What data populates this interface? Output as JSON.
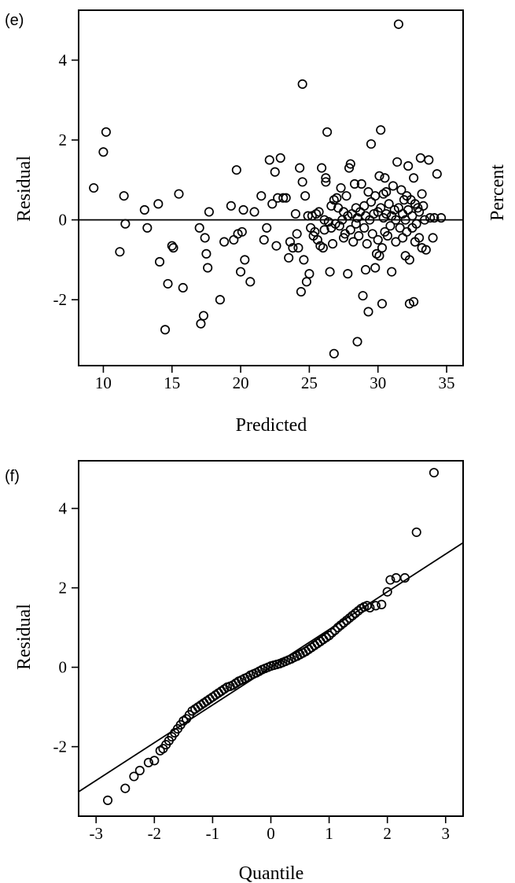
{
  "chart_data": [
    {
      "panel": "(e)",
      "type": "scatter",
      "xlabel": "Predicted",
      "ylabel": "Residual",
      "right_label": "Percent",
      "xlim": [
        8.2,
        36.2
      ],
      "ylim": [
        -3.65,
        5.25
      ],
      "xticks": [
        10,
        15,
        20,
        25,
        30,
        35
      ],
      "yticks": [
        -2,
        0,
        2,
        4
      ],
      "reference_line": {
        "type": "horizontal",
        "y": 0
      },
      "points": [
        [
          9.3,
          0.8
        ],
        [
          10.0,
          1.7
        ],
        [
          10.2,
          2.2
        ],
        [
          11.2,
          -0.8
        ],
        [
          11.5,
          0.6
        ],
        [
          11.6,
          -0.1
        ],
        [
          13.0,
          0.25
        ],
        [
          13.2,
          -0.2
        ],
        [
          14.0,
          0.4
        ],
        [
          14.1,
          -1.05
        ],
        [
          14.5,
          -2.75
        ],
        [
          14.7,
          -1.6
        ],
        [
          15.0,
          -0.65
        ],
        [
          15.1,
          -0.7
        ],
        [
          15.5,
          0.65
        ],
        [
          15.8,
          -1.7
        ],
        [
          17.0,
          -0.2
        ],
        [
          17.1,
          -2.6
        ],
        [
          17.3,
          -2.4
        ],
        [
          17.4,
          -0.45
        ],
        [
          17.5,
          -0.85
        ],
        [
          17.6,
          -1.2
        ],
        [
          17.7,
          0.2
        ],
        [
          18.5,
          -2.0
        ],
        [
          18.8,
          -0.55
        ],
        [
          19.3,
          0.35
        ],
        [
          19.5,
          -0.5
        ],
        [
          19.7,
          1.25
        ],
        [
          19.8,
          -0.35
        ],
        [
          20.0,
          -1.3
        ],
        [
          20.1,
          -0.3
        ],
        [
          20.2,
          0.25
        ],
        [
          20.3,
          -1.0
        ],
        [
          20.7,
          -1.55
        ],
        [
          21.0,
          0.2
        ],
        [
          21.5,
          0.6
        ],
        [
          21.7,
          -0.5
        ],
        [
          21.9,
          -0.2
        ],
        [
          22.1,
          1.5
        ],
        [
          22.3,
          0.4
        ],
        [
          22.5,
          1.2
        ],
        [
          22.6,
          -0.65
        ],
        [
          22.7,
          0.55
        ],
        [
          22.9,
          1.55
        ],
        [
          23.1,
          0.55
        ],
        [
          23.3,
          0.55
        ],
        [
          23.5,
          -0.95
        ],
        [
          23.6,
          -0.55
        ],
        [
          23.8,
          -0.7
        ],
        [
          24.0,
          0.15
        ],
        [
          24.1,
          -0.35
        ],
        [
          24.2,
          -0.7
        ],
        [
          24.3,
          1.3
        ],
        [
          24.4,
          -1.8
        ],
        [
          24.5,
          0.95
        ],
        [
          24.5,
          3.4
        ],
        [
          24.6,
          -1.0
        ],
        [
          24.7,
          0.6
        ],
        [
          24.8,
          -1.55
        ],
        [
          24.9,
          0.1
        ],
        [
          25.0,
          -1.35
        ],
        [
          25.1,
          -0.2
        ],
        [
          25.2,
          0.1
        ],
        [
          25.3,
          -0.4
        ],
        [
          25.4,
          -0.3
        ],
        [
          25.5,
          0.15
        ],
        [
          25.6,
          -0.5
        ],
        [
          25.7,
          0.2
        ],
        [
          25.8,
          -0.65
        ],
        [
          25.9,
          1.3
        ],
        [
          26.0,
          -0.7
        ],
        [
          26.1,
          -0.25
        ],
        [
          26.1,
          0.0
        ],
        [
          26.2,
          1.05
        ],
        [
          26.2,
          0.95
        ],
        [
          26.3,
          2.2
        ],
        [
          26.4,
          -0.05
        ],
        [
          26.5,
          -1.3
        ],
        [
          26.6,
          0.35
        ],
        [
          26.6,
          -0.2
        ],
        [
          26.7,
          -0.6
        ],
        [
          26.8,
          0.5
        ],
        [
          26.9,
          -0.1
        ],
        [
          27.0,
          0.55
        ],
        [
          26.8,
          -3.35
        ],
        [
          27.1,
          0.3
        ],
        [
          27.2,
          -0.15
        ],
        [
          27.3,
          0.8
        ],
        [
          27.4,
          0.0
        ],
        [
          27.5,
          -0.45
        ],
        [
          27.5,
          0.2
        ],
        [
          27.6,
          -0.35
        ],
        [
          27.7,
          0.6
        ],
        [
          27.8,
          -1.35
        ],
        [
          27.8,
          0.1
        ],
        [
          27.9,
          1.3
        ],
        [
          28.0,
          -0.25
        ],
        [
          28.0,
          1.4
        ],
        [
          28.1,
          0.15
        ],
        [
          28.2,
          -0.55
        ],
        [
          28.3,
          0.9
        ],
        [
          28.4,
          -0.1
        ],
        [
          28.4,
          0.3
        ],
        [
          28.5,
          0.05
        ],
        [
          28.5,
          -3.05
        ],
        [
          28.6,
          -0.4
        ],
        [
          28.7,
          0.2
        ],
        [
          28.8,
          0.9
        ],
        [
          28.9,
          -1.9
        ],
        [
          29.0,
          0.35
        ],
        [
          29.0,
          -0.2
        ],
        [
          29.1,
          -1.25
        ],
        [
          29.1,
          0.1
        ],
        [
          29.2,
          -0.6
        ],
        [
          29.3,
          0.7
        ],
        [
          29.3,
          -2.3
        ],
        [
          29.4,
          0.0
        ],
        [
          29.5,
          1.9
        ],
        [
          29.5,
          0.45
        ],
        [
          29.6,
          -0.35
        ],
        [
          29.7,
          0.15
        ],
        [
          29.8,
          -1.2
        ],
        [
          29.8,
          0.6
        ],
        [
          29.9,
          -0.85
        ],
        [
          30.0,
          0.2
        ],
        [
          30.0,
          -0.5
        ],
        [
          30.1,
          -0.9
        ],
        [
          30.1,
          1.1
        ],
        [
          30.2,
          0.3
        ],
        [
          30.2,
          2.25
        ],
        [
          30.3,
          -0.7
        ],
        [
          30.3,
          -2.1
        ],
        [
          30.4,
          0.05
        ],
        [
          30.4,
          0.65
        ],
        [
          30.5,
          1.05
        ],
        [
          30.5,
          -0.3
        ],
        [
          30.6,
          0.7
        ],
        [
          30.6,
          0.15
        ],
        [
          30.7,
          -0.4
        ],
        [
          30.8,
          0.4
        ],
        [
          30.9,
          -0.15
        ],
        [
          31.0,
          0.1
        ],
        [
          31.0,
          -1.3
        ],
        [
          31.1,
          0.85
        ],
        [
          31.2,
          0.25
        ],
        [
          31.3,
          -0.55
        ],
        [
          31.3,
          0.0
        ],
        [
          31.4,
          1.45
        ],
        [
          31.5,
          4.9
        ],
        [
          31.5,
          0.3
        ],
        [
          31.6,
          -0.2
        ],
        [
          31.7,
          0.75
        ],
        [
          31.8,
          -0.45
        ],
        [
          31.8,
          0.15
        ],
        [
          31.9,
          0.5
        ],
        [
          32.0,
          -0.9
        ],
        [
          32.0,
          0.0
        ],
        [
          32.1,
          0.6
        ],
        [
          32.1,
          -0.3
        ],
        [
          32.2,
          1.35
        ],
        [
          32.2,
          0.25
        ],
        [
          32.3,
          -2.1
        ],
        [
          32.3,
          -1.0
        ],
        [
          32.4,
          0.5
        ],
        [
          32.5,
          -0.2
        ],
        [
          32.5,
          0.1
        ],
        [
          32.6,
          -2.05
        ],
        [
          32.6,
          1.05
        ],
        [
          32.7,
          -0.55
        ],
        [
          32.7,
          0.4
        ],
        [
          32.8,
          -0.1
        ],
        [
          32.9,
          0.3
        ],
        [
          33.0,
          -0.45
        ],
        [
          33.0,
          0.2
        ],
        [
          33.1,
          1.55
        ],
        [
          33.2,
          0.65
        ],
        [
          33.2,
          -0.7
        ],
        [
          33.3,
          0.35
        ],
        [
          33.4,
          0.0
        ],
        [
          33.5,
          -0.75
        ],
        [
          33.7,
          1.5
        ],
        [
          33.8,
          0.05
        ],
        [
          34.0,
          -0.45
        ],
        [
          34.1,
          0.05
        ],
        [
          34.3,
          1.15
        ],
        [
          34.6,
          0.05
        ]
      ]
    },
    {
      "panel": "(f)",
      "type": "scatter",
      "xlabel": "Quantile",
      "ylabel": "Residual",
      "xlim": [
        -3.3,
        3.3
      ],
      "ylim": [
        -3.75,
        5.2
      ],
      "xticks": [
        -3,
        -2,
        -1,
        0,
        1,
        2,
        3
      ],
      "yticks": [
        -2,
        0,
        2,
        4
      ],
      "reference_line": {
        "type": "linear",
        "intercept": 0.0,
        "slope": 0.95
      },
      "points": [
        [
          -2.8,
          -3.35
        ],
        [
          -2.5,
          -3.05
        ],
        [
          -2.35,
          -2.75
        ],
        [
          -2.25,
          -2.6
        ],
        [
          -2.1,
          -2.4
        ],
        [
          -2.0,
          -2.35
        ],
        [
          -1.9,
          -2.1
        ],
        [
          -1.85,
          -2.05
        ],
        [
          -1.8,
          -1.95
        ],
        [
          -1.75,
          -1.85
        ],
        [
          -1.7,
          -1.75
        ],
        [
          -1.65,
          -1.65
        ],
        [
          -1.6,
          -1.55
        ],
        [
          -1.55,
          -1.45
        ],
        [
          -1.5,
          -1.35
        ],
        [
          -1.45,
          -1.3
        ],
        [
          -1.4,
          -1.2
        ],
        [
          -1.35,
          -1.1
        ],
        [
          -1.3,
          -1.05
        ],
        [
          -1.25,
          -1.0
        ],
        [
          -1.2,
          -0.95
        ],
        [
          -1.15,
          -0.9
        ],
        [
          -1.1,
          -0.85
        ],
        [
          -1.05,
          -0.8
        ],
        [
          -1.0,
          -0.75
        ],
        [
          -0.95,
          -0.7
        ],
        [
          -0.9,
          -0.65
        ],
        [
          -0.85,
          -0.6
        ],
        [
          -0.8,
          -0.55
        ],
        [
          -0.75,
          -0.5
        ],
        [
          -0.7,
          -0.48
        ],
        [
          -0.65,
          -0.45
        ],
        [
          -0.6,
          -0.4
        ],
        [
          -0.55,
          -0.35
        ],
        [
          -0.5,
          -0.32
        ],
        [
          -0.45,
          -0.28
        ],
        [
          -0.4,
          -0.25
        ],
        [
          -0.35,
          -0.2
        ],
        [
          -0.3,
          -0.17
        ],
        [
          -0.25,
          -0.14
        ],
        [
          -0.2,
          -0.1
        ],
        [
          -0.15,
          -0.06
        ],
        [
          -0.1,
          -0.03
        ],
        [
          -0.05,
          0.0
        ],
        [
          0.0,
          0.03
        ],
        [
          0.05,
          0.05
        ],
        [
          0.1,
          0.07
        ],
        [
          0.15,
          0.09
        ],
        [
          0.2,
          0.12
        ],
        [
          0.25,
          0.15
        ],
        [
          0.3,
          0.18
        ],
        [
          0.35,
          0.21
        ],
        [
          0.4,
          0.25
        ],
        [
          0.45,
          0.28
        ],
        [
          0.5,
          0.32
        ],
        [
          0.55,
          0.36
        ],
        [
          0.6,
          0.4
        ],
        [
          0.65,
          0.45
        ],
        [
          0.7,
          0.5
        ],
        [
          0.75,
          0.55
        ],
        [
          0.8,
          0.6
        ],
        [
          0.85,
          0.65
        ],
        [
          0.9,
          0.7
        ],
        [
          0.95,
          0.75
        ],
        [
          1.0,
          0.8
        ],
        [
          1.05,
          0.87
        ],
        [
          1.1,
          0.93
        ],
        [
          1.15,
          1.0
        ],
        [
          1.2,
          1.06
        ],
        [
          1.25,
          1.12
        ],
        [
          1.3,
          1.18
        ],
        [
          1.35,
          1.24
        ],
        [
          1.4,
          1.3
        ],
        [
          1.45,
          1.36
        ],
        [
          1.5,
          1.42
        ],
        [
          1.55,
          1.48
        ],
        [
          1.6,
          1.52
        ],
        [
          1.65,
          1.55
        ],
        [
          1.7,
          1.5
        ],
        [
          1.8,
          1.55
        ],
        [
          1.9,
          1.58
        ],
        [
          2.0,
          1.9
        ],
        [
          2.05,
          2.2
        ],
        [
          2.15,
          2.25
        ],
        [
          2.3,
          2.25
        ],
        [
          2.5,
          3.4
        ],
        [
          2.8,
          4.9
        ]
      ]
    }
  ]
}
